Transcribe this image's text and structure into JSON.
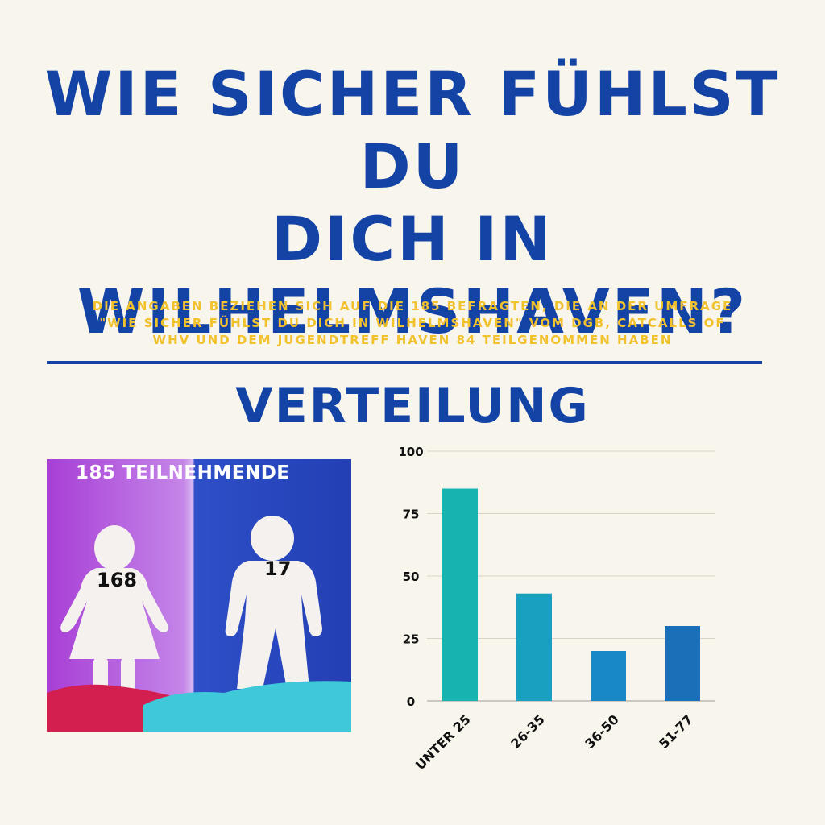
{
  "header": {
    "title_lines": [
      "WIE SICHER FÜHLST DU",
      "DICH IN",
      "WILHELMSHAVEN?"
    ],
    "subtitle_lines": [
      "DIE ANGABEN BEZIEHEN SICH AUF DIE 185 BEFRAGTEN, DIE AN DER UMFRAGE",
      "\"WIE SICHER FÜHLST DU DICH IN WILHELMSHAVEN\" VOM DGB, CATCALLS OF",
      "WHV UND DEM JUGENDTREFF HAVEN 84 TEILGENOMMEN HABEN"
    ]
  },
  "section": {
    "title": "VERTEILUNG"
  },
  "participants": {
    "label": "185 TEILNEHMENDE",
    "female_count": "168",
    "male_count": "17"
  },
  "colors": {
    "title": "#1443a6",
    "subtitle": "#f2c12e",
    "background": "#f8f5ec",
    "bars": [
      "#17b3b1",
      "#199fbf",
      "#1888c6",
      "#1a6fb8"
    ]
  },
  "chart_data": {
    "type": "bar",
    "categories": [
      "UNTER 25",
      "26-35",
      "36-50",
      "51-77"
    ],
    "values": [
      85,
      43,
      20,
      30
    ],
    "ylim": [
      0,
      100
    ],
    "yticks": [
      0,
      25,
      50,
      75,
      100
    ],
    "grid": true,
    "xlabel": "",
    "ylabel": ""
  }
}
